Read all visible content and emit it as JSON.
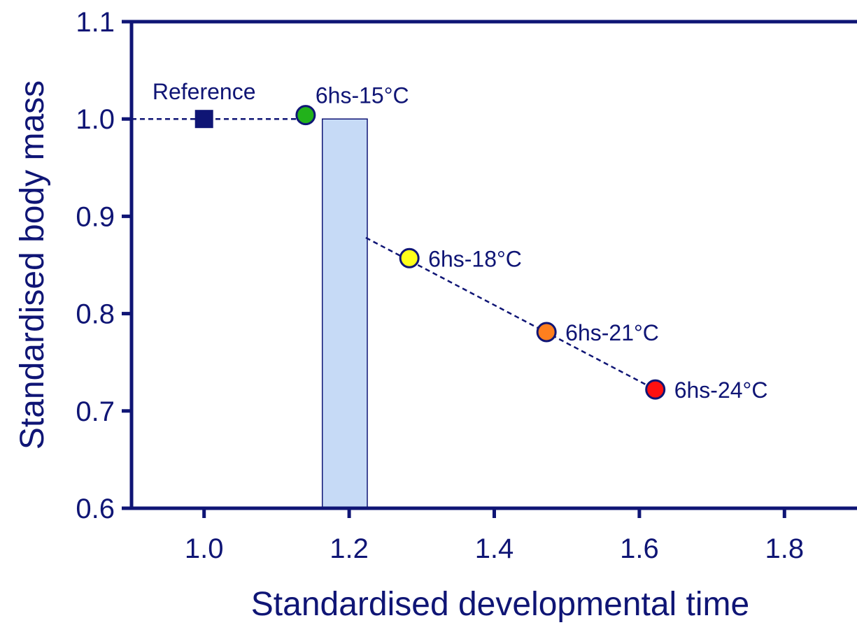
{
  "chart_data": {
    "type": "scatter",
    "xlabel": "Standardised developmental time",
    "ylabel": "Standardised body mass",
    "xlim": [
      0.9,
      1.9
    ],
    "ylim": [
      0.6,
      1.1
    ],
    "x_ticks": [
      1.0,
      1.2,
      1.4,
      1.6,
      1.8
    ],
    "x_tick_labels": [
      "1.0",
      "1.2",
      "1.4",
      "1.6",
      "1.8"
    ],
    "y_ticks": [
      0.6,
      0.7,
      0.8,
      0.9,
      1.0,
      1.1
    ],
    "y_tick_labels": [
      "0.6",
      "0.7",
      "0.8",
      "0.9",
      "1.0",
      "1.1"
    ],
    "reference": {
      "label": "Reference",
      "x": 1.0,
      "y": 1.0,
      "marker": "square",
      "color": "#0f1575"
    },
    "points": [
      {
        "label": "6hs-15°C",
        "x": 1.14,
        "y": 1.004,
        "color": "#22b21b"
      },
      {
        "label": "6hs-18°C",
        "x": 1.283,
        "y": 0.857,
        "color": "#ffff1a"
      },
      {
        "label": "6hs-21°C",
        "x": 1.472,
        "y": 0.781,
        "color": "#ff7f1e"
      },
      {
        "label": "6hs-24°C",
        "x": 1.622,
        "y": 0.722,
        "color": "#ff1010"
      }
    ],
    "reference_line": {
      "x": [
        0.9,
        1.14
      ],
      "y": [
        1.0,
        1.0
      ]
    },
    "trend_line": {
      "x": [
        1.223,
        1.622
      ],
      "y": [
        0.878,
        0.722
      ]
    },
    "bar": {
      "x_start": 1.163,
      "x_end": 1.225,
      "y_top": 1.0,
      "color": "#c6daf6"
    },
    "colors": {
      "axis": "#0f1575"
    }
  }
}
